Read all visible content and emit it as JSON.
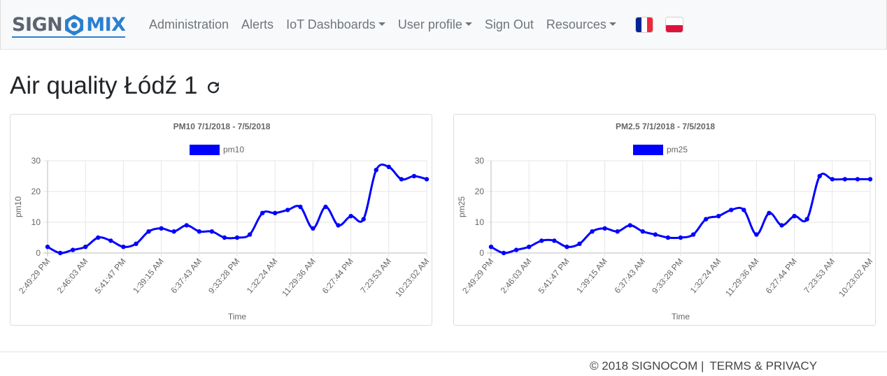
{
  "brand": {
    "part1": "SIGN",
    "part2": "MIX"
  },
  "nav": {
    "items": [
      {
        "label": "Administration",
        "dropdown": false
      },
      {
        "label": "Alerts",
        "dropdown": false
      },
      {
        "label": "IoT Dashboards",
        "dropdown": true
      },
      {
        "label": "User profile",
        "dropdown": true
      },
      {
        "label": "Sign Out",
        "dropdown": false
      },
      {
        "label": "Resources",
        "dropdown": true
      }
    ],
    "flags": [
      "flag-fr-icon",
      "flag-pl-icon"
    ]
  },
  "colors": {
    "series": "#0000ff",
    "brand_blue": "#2a7fd0",
    "flag_fr": [
      "#002395",
      "#ffffff",
      "#ed2939"
    ],
    "flag_pl": [
      "#ffffff",
      "#dc143c"
    ]
  },
  "page": {
    "title": "Air quality Łódź 1",
    "refresh_icon": "refresh-icon"
  },
  "chart_data": [
    {
      "type": "line",
      "title": "PM10 7/1/2018 - 7/5/2018",
      "legend": "pm10",
      "xlabel": "Time",
      "ylabel": "pm10",
      "ylim": [
        0,
        30
      ],
      "yticks": [
        0,
        10,
        20,
        30
      ],
      "x_tick_labels": [
        "2:49:29 PM",
        "2:46:03 AM",
        "5:41:47 PM",
        "1:39:15 AM",
        "6:37:43 AM",
        "9:33:28 PM",
        "1:32:24 AM",
        "11:29:36 AM",
        "6:27:44 PM",
        "7:23:53 AM",
        "10:23:02 AM"
      ],
      "values": [
        2,
        0,
        1,
        2,
        5,
        4,
        2,
        3,
        7,
        8,
        7,
        9,
        7,
        7,
        5,
        5,
        6,
        13,
        13,
        14,
        15,
        8,
        15,
        9,
        12,
        11,
        27,
        28,
        24,
        25,
        24
      ]
    },
    {
      "type": "line",
      "title": "PM2.5 7/1/2018 - 7/5/2018",
      "legend": "pm25",
      "xlabel": "Time",
      "ylabel": "pm25",
      "ylim": [
        0,
        30
      ],
      "yticks": [
        0,
        10,
        20,
        30
      ],
      "x_tick_labels": [
        "2:49:29 PM",
        "2:46:03 AM",
        "5:41:47 PM",
        "1:39:15 AM",
        "6:37:43 AM",
        "9:33:28 PM",
        "1:32:24 AM",
        "11:29:36 AM",
        "6:27:44 PM",
        "7:23:53 AM",
        "10:23:02 AM"
      ],
      "values": [
        2,
        0,
        1,
        2,
        4,
        4,
        2,
        3,
        7,
        8,
        7,
        9,
        7,
        6,
        5,
        5,
        6,
        11,
        12,
        14,
        14,
        6,
        13,
        9,
        12,
        11,
        25,
        24,
        24,
        24,
        24
      ]
    }
  ],
  "footer": {
    "copyright": "© 2018 SIGNOCOM |",
    "link": "TERMS & PRIVACY"
  }
}
